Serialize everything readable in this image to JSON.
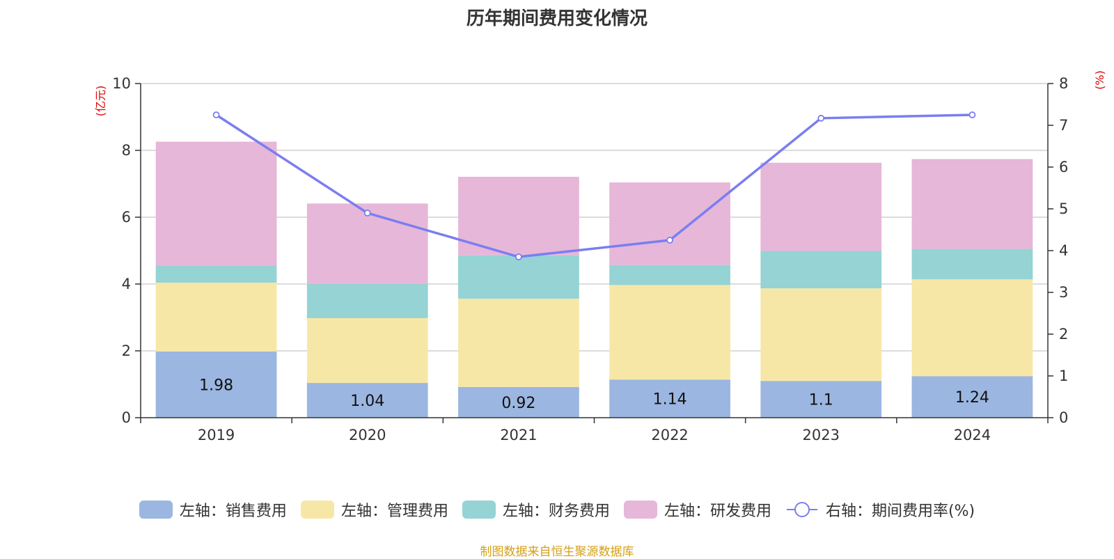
{
  "title": "历年期间费用变化情况",
  "source": "制图数据来自恒生聚源数据库",
  "colors": {
    "sales": "#9bb6e0",
    "admin": "#f7e7a7",
    "finance": "#95d3d4",
    "rd": "#e6b7d9",
    "rate": "#7a7ef0",
    "grid": "#c8c8c8",
    "axis": "#333333",
    "unit": "#e00000",
    "source": "#d4a017"
  },
  "chart_data": {
    "type": "bar",
    "stacked": true,
    "categories": [
      "2019",
      "2020",
      "2021",
      "2022",
      "2023",
      "2024"
    ],
    "y_left": {
      "unit": "(亿元)",
      "ylim": [
        0,
        10
      ],
      "ticks": [
        0,
        2,
        4,
        6,
        8,
        10
      ]
    },
    "y_right": {
      "unit": "(%)",
      "ylim": [
        0,
        8
      ],
      "ticks": [
        0,
        1,
        2,
        3,
        4,
        5,
        6,
        7,
        8
      ]
    },
    "grid": true,
    "legend_position": "bottom",
    "series": [
      {
        "name": "左轴：销售费用",
        "axis": "left",
        "type": "bar",
        "values": [
          1.98,
          1.04,
          0.92,
          1.14,
          1.1,
          1.24
        ],
        "show_labels": true
      },
      {
        "name": "左轴：管理费用",
        "axis": "left",
        "type": "bar",
        "values": [
          2.06,
          1.94,
          2.64,
          2.83,
          2.77,
          2.9
        ]
      },
      {
        "name": "左轴：财务费用",
        "axis": "left",
        "type": "bar",
        "values": [
          0.51,
          1.02,
          1.3,
          0.6,
          1.12,
          0.91
        ]
      },
      {
        "name": "左轴：研发费用",
        "axis": "left",
        "type": "bar",
        "values": [
          3.71,
          2.41,
          2.35,
          2.47,
          2.64,
          2.69
        ]
      },
      {
        "name": "右轴：期间费用率(%)",
        "axis": "right",
        "type": "line",
        "values": [
          7.25,
          4.9,
          3.85,
          4.25,
          7.17,
          7.25
        ]
      }
    ]
  }
}
